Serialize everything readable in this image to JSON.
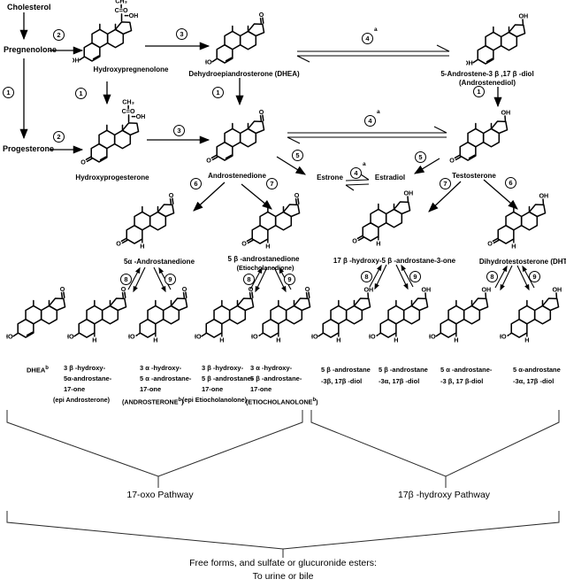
{
  "palette": {
    "ink": "#000000",
    "bg": "#ffffff"
  },
  "steps": {
    "1": "1",
    "2": "2",
    "3": "3",
    "4": "4",
    "5": "5",
    "6": "6",
    "7": "7",
    "8": "8",
    "9": "9"
  },
  "sup": {
    "a": "a",
    "b": "b"
  },
  "nodes": {
    "cholesterol": {
      "label": "Cholesterol"
    },
    "pregnenolone": {
      "label": "Pregnenolone"
    },
    "progesterone": {
      "label": "Progesterone"
    },
    "hydroxypregnenolone": {
      "label": "Hydroxypregnenolone",
      "struct": {
        "chain": true,
        "left": "OH",
        "delta": true
      }
    },
    "hydroxyprogesterone": {
      "label": "Hydroxyprogesterone",
      "struct": {
        "chain": true,
        "left": "O",
        "delta": true
      }
    },
    "dhea": {
      "label": "Dehydroepiandrosterone (DHEA)",
      "struct": {
        "top": "O",
        "left": "HO",
        "delta": true
      }
    },
    "androstenediol": {
      "label": "5-Androstene-3 β ,17 β -diol",
      "label2": "(Androstenediol)",
      "struct": {
        "top": "OH",
        "left": "OH",
        "delta": true
      }
    },
    "androstenedione": {
      "label": "Androstenedione",
      "struct": {
        "top": "O",
        "left": "O",
        "delta": true
      }
    },
    "testosterone": {
      "label": "Testosterone",
      "struct": {
        "top": "OH",
        "left": "O",
        "delta": true
      }
    },
    "estrone": {
      "label": "Estrone"
    },
    "estradiol": {
      "label": "Estradiol"
    },
    "a5dione": {
      "label": "5α -Androstanedione",
      "struct": {
        "top": "O",
        "left": "O",
        "h": true
      }
    },
    "etiodione": {
      "label": "5 β -androstanedione",
      "label2": "(Etiocholanedione)",
      "struct": {
        "top": "O",
        "left": "O",
        "h": true
      }
    },
    "ohb5": {
      "label": "17 β -hydroxy-5 β -androstane-3-one",
      "struct": {
        "top": "OH",
        "left": "O",
        "h": true
      }
    },
    "dht": {
      "label": "Dihydrotestosterone (DHT)",
      "struct": {
        "top": "OH",
        "left": "O",
        "h": true
      }
    },
    "b1": {
      "struct": {
        "top": "O",
        "left": "HO",
        "delta": true
      }
    },
    "b2": {
      "struct": {
        "top": "O",
        "left": "HO",
        "h": true
      }
    },
    "b3": {
      "struct": {
        "top": "O",
        "left": "HO",
        "h": true,
        "alpha": true
      }
    },
    "b4": {
      "struct": {
        "top": "O",
        "left": "HO",
        "h": true
      }
    },
    "b5": {
      "struct": {
        "top": "O",
        "left": "HO",
        "h": true,
        "alpha": true
      }
    },
    "b6": {
      "struct": {
        "top": "OH",
        "left": "HO",
        "h": true
      }
    },
    "b7": {
      "struct": {
        "top": "OH",
        "left": "HO",
        "h": true,
        "alpha": true
      }
    },
    "b8": {
      "struct": {
        "top": "OH",
        "left": "HO",
        "h": true
      }
    },
    "b9": {
      "struct": {
        "top": "OH",
        "left": "HO",
        "h": true,
        "alpha": true
      }
    }
  },
  "bottom": {
    "b1": {
      "name": "DHEA"
    },
    "b2": {
      "lines": [
        "3 β -hydroxy-",
        "5α-androstane-",
        "17-one"
      ]
    },
    "b3": {
      "lines": [
        "3 α -hydroxy-",
        "5 α -androstane-",
        "17-one"
      ]
    },
    "b4": {
      "lines": [
        "3 β -hydroxy-",
        "5 β -androstane-",
        "17-one"
      ]
    },
    "b5": {
      "lines": [
        "3 α -hydroxy-",
        "5 β -androstane-",
        "17-one"
      ]
    },
    "b6": {
      "lines": [
        "5 β -androstane",
        "-3β, 17β -diol"
      ]
    },
    "b7": {
      "lines": [
        "5 β -androstane",
        "-3α, 17β -diol"
      ]
    },
    "b8": {
      "lines": [
        "5 α -androstane-",
        "-3 β, 17 β-diol"
      ]
    },
    "b9": {
      "lines": [
        "5 α-androstane",
        "-3α, 17β -diol"
      ]
    },
    "parens": [
      {
        "pre": "(epi Androsterone)"
      },
      {
        "pre": "(ANDROSTERONE",
        "sup": "b",
        "post": ")"
      },
      {
        "pre": "(epi Etiocholanolone)"
      },
      {
        "pre": "(ETIOCHOLANOLONE",
        "sup": "b",
        "post": ")"
      }
    ]
  },
  "pathways": {
    "left": "17-oxo Pathway",
    "right": "17β -hydroxy Pathway"
  },
  "footer": {
    "line1": "Free forms, and sulfate or glucuronide esters:",
    "line2": "To urine or bile"
  }
}
